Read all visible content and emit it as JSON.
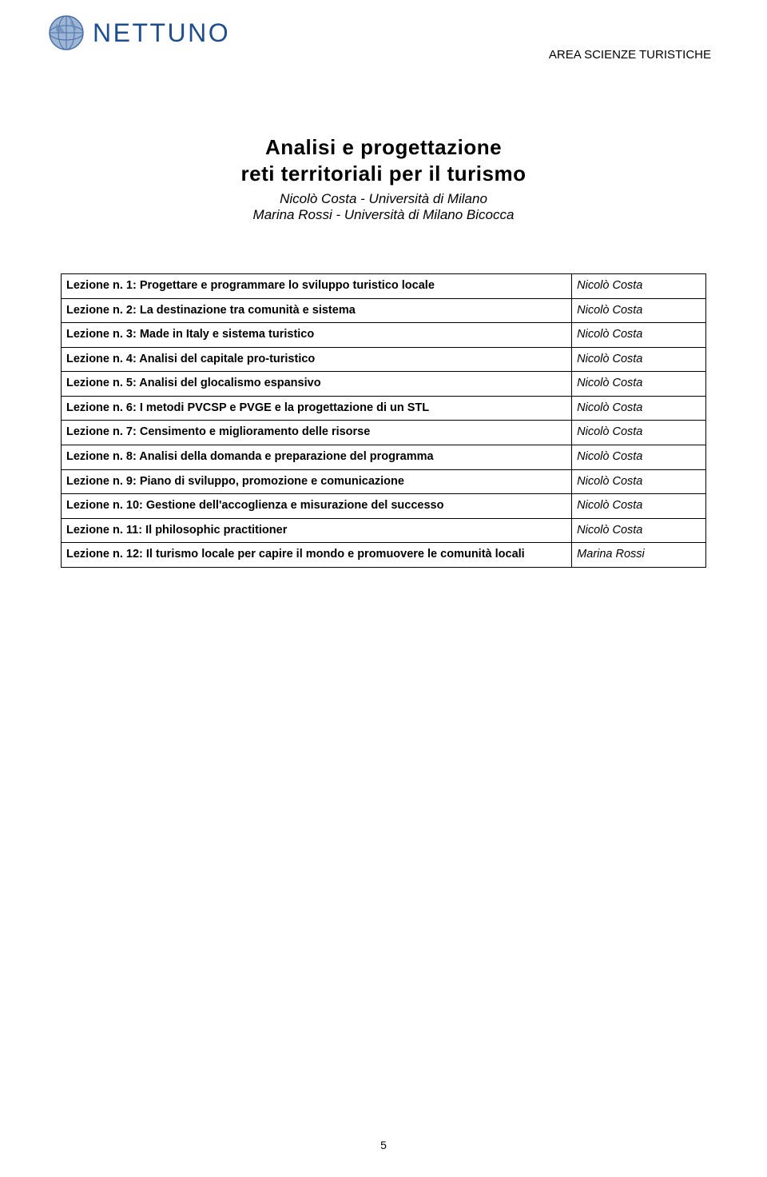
{
  "logo": {
    "text": "NETTUNO",
    "text_color": "#1f4e8c",
    "globe_stroke": "#4a6fa5",
    "globe_fill": "#9db6d6"
  },
  "header_right": "AREA SCIENZE TURISTICHE",
  "title": {
    "line1": "Analisi e progettazione",
    "line2": "reti territoriali per il turismo",
    "sub1": "Nicolò Costa - Università di Milano",
    "sub2": "Marina Rossi - Università di Milano Bicocca"
  },
  "table": {
    "border_color": "#000000",
    "rows": [
      {
        "left": "Lezione n. 1: Progettare e programmare lo sviluppo turistico locale",
        "right": "Nicolò Costa"
      },
      {
        "left": "Lezione n. 2: La destinazione tra comunità e sistema",
        "right": "Nicolò Costa"
      },
      {
        "left": "Lezione n. 3: Made in Italy e sistema turistico",
        "right": "Nicolò Costa"
      },
      {
        "left": "Lezione n. 4: Analisi del capitale pro-turistico",
        "right": "Nicolò Costa"
      },
      {
        "left": "Lezione n. 5: Analisi del glocalismo espansivo",
        "right": "Nicolò Costa"
      },
      {
        "left": "Lezione n. 6: I metodi PVCSP e PVGE e la progettazione di un STL",
        "right": "Nicolò Costa"
      },
      {
        "left": "Lezione n. 7: Censimento e miglioramento delle risorse",
        "right": "Nicolò Costa"
      },
      {
        "left": "Lezione n. 8: Analisi della domanda e preparazione del programma",
        "right": "Nicolò Costa"
      },
      {
        "left": "Lezione n. 9: Piano di sviluppo, promozione e comunicazione",
        "right": "Nicolò Costa"
      },
      {
        "left": "Lezione n. 10: Gestione dell'accoglienza e misurazione del successo",
        "right": "Nicolò Costa"
      },
      {
        "left": "Lezione n. 11: Il philosophic practitioner",
        "right": "Nicolò Costa"
      },
      {
        "left": "Lezione n. 12: Il turismo locale per capire il mondo e promuovere le comunità locali",
        "right": "Marina Rossi"
      }
    ]
  },
  "page_number": "5"
}
